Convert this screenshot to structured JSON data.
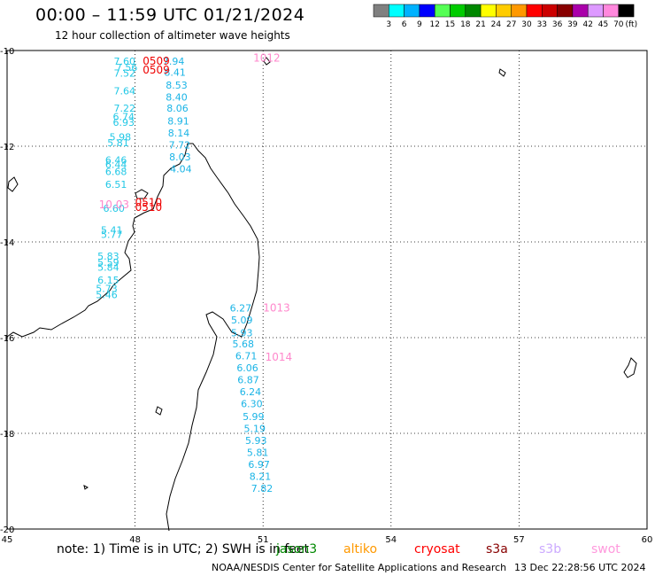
{
  "title": "00:00 – 11:59 UTC 01/21/2024",
  "subtitle": "12 hour collection of altimeter wave heights",
  "legend": {
    "colors": [
      "#808080",
      "#00ffff",
      "#00b2ff",
      "#0000ff",
      "#55ff55",
      "#00cc00",
      "#008800",
      "#ffff00",
      "#ffcc00",
      "#ff9900",
      "#ff0000",
      "#cc0000",
      "#880000",
      "#aa00aa",
      "#dd99ff",
      "#ff88dd",
      "#000000"
    ],
    "labels": [
      "3",
      "6",
      "9",
      "12",
      "15",
      "18",
      "21",
      "24",
      "27",
      "30",
      "33",
      "36",
      "39",
      "42",
      "45",
      "70"
    ],
    "unit": "(ft)"
  },
  "map": {
    "lon_ticks": [
      "45",
      "48",
      "51",
      "54",
      "57",
      "60"
    ],
    "lat_ticks": [
      "-10",
      "-12",
      "-14",
      "-16",
      "-18",
      "-20"
    ],
    "x_range": [
      45,
      60
    ],
    "y_range": [
      -20,
      -10
    ]
  },
  "observations": {
    "cyan_track": [
      {
        "lon": 48.65,
        "lat": -10.3,
        "v": "7.94"
      },
      {
        "lon": 48.68,
        "lat": -10.53,
        "v": "8.41"
      },
      {
        "lon": 48.72,
        "lat": -10.8,
        "v": "8.53"
      },
      {
        "lon": 48.72,
        "lat": -11.05,
        "v": "8.40"
      },
      {
        "lon": 48.74,
        "lat": -11.28,
        "v": "8.06"
      },
      {
        "lon": 48.76,
        "lat": -11.55,
        "v": "8.91"
      },
      {
        "lon": 48.77,
        "lat": -11.8,
        "v": "8.14"
      },
      {
        "lon": 48.79,
        "lat": -12.05,
        "v": "7.72"
      },
      {
        "lon": 48.8,
        "lat": -12.3,
        "v": "8.03"
      },
      {
        "lon": 48.82,
        "lat": -12.55,
        "v": "4.04"
      },
      {
        "lon": 50.22,
        "lat": -15.45,
        "v": "6.27"
      },
      {
        "lon": 50.25,
        "lat": -15.7,
        "v": "5.09"
      },
      {
        "lon": 50.25,
        "lat": -15.97,
        "v": "5.93"
      },
      {
        "lon": 50.28,
        "lat": -16.2,
        "v": "5.68"
      },
      {
        "lon": 50.35,
        "lat": -16.45,
        "v": "6.71"
      },
      {
        "lon": 50.38,
        "lat": -16.7,
        "v": "6.06"
      },
      {
        "lon": 50.4,
        "lat": -16.95,
        "v": "6.87"
      },
      {
        "lon": 50.45,
        "lat": -17.2,
        "v": "6.24"
      },
      {
        "lon": 50.48,
        "lat": -17.45,
        "v": "6.30"
      },
      {
        "lon": 50.52,
        "lat": -17.72,
        "v": "5.99"
      },
      {
        "lon": 50.55,
        "lat": -17.97,
        "v": "5.19"
      },
      {
        "lon": 50.58,
        "lat": -18.22,
        "v": "5.93"
      },
      {
        "lon": 50.62,
        "lat": -18.47,
        "v": "5.81"
      },
      {
        "lon": 50.65,
        "lat": -18.72,
        "v": "6.97"
      },
      {
        "lon": 50.68,
        "lat": -18.97,
        "v": "8.21"
      },
      {
        "lon": 50.72,
        "lat": -19.22,
        "v": "7.82"
      }
    ],
    "west_track": [
      {
        "lon": 47.5,
        "lat": -10.3,
        "v": "7.60"
      },
      {
        "lon": 47.55,
        "lat": -10.43,
        "v": "7.56"
      },
      {
        "lon": 47.5,
        "lat": -10.55,
        "v": "7.52"
      },
      {
        "lon": 47.5,
        "lat": -10.92,
        "v": "7.64"
      },
      {
        "lon": 47.5,
        "lat": -11.28,
        "v": "7.22"
      },
      {
        "lon": 47.48,
        "lat": -11.45,
        "v": "6.74"
      },
      {
        "lon": 47.48,
        "lat": -11.57,
        "v": "6.93"
      },
      {
        "lon": 47.4,
        "lat": -11.88,
        "v": "5.98"
      },
      {
        "lon": 47.35,
        "lat": -12.0,
        "v": "5.81"
      },
      {
        "lon": 47.3,
        "lat": -12.36,
        "v": "6.46"
      },
      {
        "lon": 47.3,
        "lat": -12.45,
        "v": "6.44"
      },
      {
        "lon": 47.3,
        "lat": -12.6,
        "v": "6.68"
      },
      {
        "lon": 47.3,
        "lat": -12.87,
        "v": "6.51"
      },
      {
        "lon": 47.25,
        "lat": -13.37,
        "v": "6.60"
      },
      {
        "lon": 47.2,
        "lat": -13.82,
        "v": "5.41"
      },
      {
        "lon": 47.2,
        "lat": -13.92,
        "v": "5.77"
      },
      {
        "lon": 47.12,
        "lat": -14.37,
        "v": "5.83"
      },
      {
        "lon": 47.12,
        "lat": -14.5,
        "v": "5.59"
      },
      {
        "lon": 47.12,
        "lat": -14.6,
        "v": "5.84"
      },
      {
        "lon": 47.12,
        "lat": -14.87,
        "v": "6.15"
      },
      {
        "lon": 47.08,
        "lat": -15.05,
        "v": "5.73"
      },
      {
        "lon": 47.08,
        "lat": -15.18,
        "v": "5.46"
      }
    ],
    "pink_points": [
      {
        "lon": 47.15,
        "lat": -13.3,
        "v": "10.03"
      },
      {
        "lon": 50.77,
        "lat": -10.23,
        "v": "1012"
      },
      {
        "lon": 51.0,
        "lat": -15.45,
        "v": "1013"
      },
      {
        "lon": 51.05,
        "lat": -16.48,
        "v": "1014"
      }
    ],
    "red_points": [
      {
        "lon": 48.18,
        "lat": -10.3,
        "v": "0509"
      },
      {
        "lon": 48.18,
        "lat": -10.48,
        "v": "0509"
      },
      {
        "lon": 48.0,
        "lat": -13.25,
        "v": "0510"
      },
      {
        "lon": 48.0,
        "lat": -13.35,
        "v": "0510"
      }
    ]
  },
  "note": "note:  1) Time is in UTC; 2) SWH is in feet",
  "satellites": [
    {
      "name": "jason3",
      "color": "#008800"
    },
    {
      "name": "altiko",
      "color": "#ff9900"
    },
    {
      "name": "cryosat",
      "color": "#ff0000"
    },
    {
      "name": "s3a",
      "color": "#880000"
    },
    {
      "name": "s3b",
      "color": "#ccaaff"
    },
    {
      "name": "swot",
      "color": "#ff99dd"
    }
  ],
  "credit": "NOAA/NESDIS Center for Satellite Applications and Research",
  "timestamp": "13 Dec 22:28:56 UTC 2024"
}
